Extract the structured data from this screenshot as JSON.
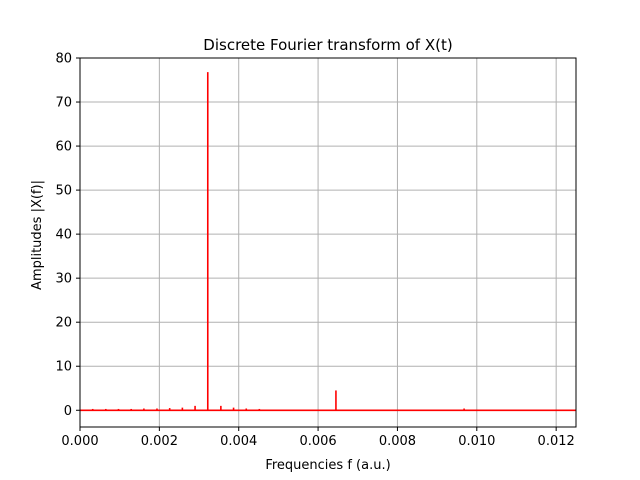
{
  "chart_data": {
    "type": "stem",
    "title": "Discrete Fourier transform of X(t)",
    "xlabel": "Frequencies f (a.u.)",
    "ylabel": "Amplitudes |X(f)|",
    "xlim": [
      0,
      0.0125
    ],
    "ylim": [
      -3.8,
      80
    ],
    "xticks": [
      0.0,
      0.002,
      0.004,
      0.006,
      0.008,
      0.01,
      0.012
    ],
    "xtick_labels": [
      "0.000",
      "0.002",
      "0.004",
      "0.006",
      "0.008",
      "0.010",
      "0.012"
    ],
    "yticks": [
      0,
      10,
      20,
      30,
      40,
      50,
      60,
      70,
      80
    ],
    "ytick_labels": [
      "0",
      "10",
      "20",
      "30",
      "40",
      "50",
      "60",
      "70",
      "80"
    ],
    "grid": true,
    "series": [
      {
        "color": "#ff0000",
        "x": [
          0.00032,
          0.00065,
          0.00097,
          0.00129,
          0.00161,
          0.00194,
          0.00226,
          0.00258,
          0.0029,
          0.00322,
          0.00355,
          0.00387,
          0.00419,
          0.00452,
          0.00645,
          0.00968
        ],
        "y": [
          0.3,
          0.3,
          0.3,
          0.3,
          0.4,
          0.4,
          0.5,
          0.6,
          1.0,
          76.8,
          1.0,
          0.6,
          0.4,
          0.3,
          4.5,
          0.4
        ]
      }
    ]
  }
}
